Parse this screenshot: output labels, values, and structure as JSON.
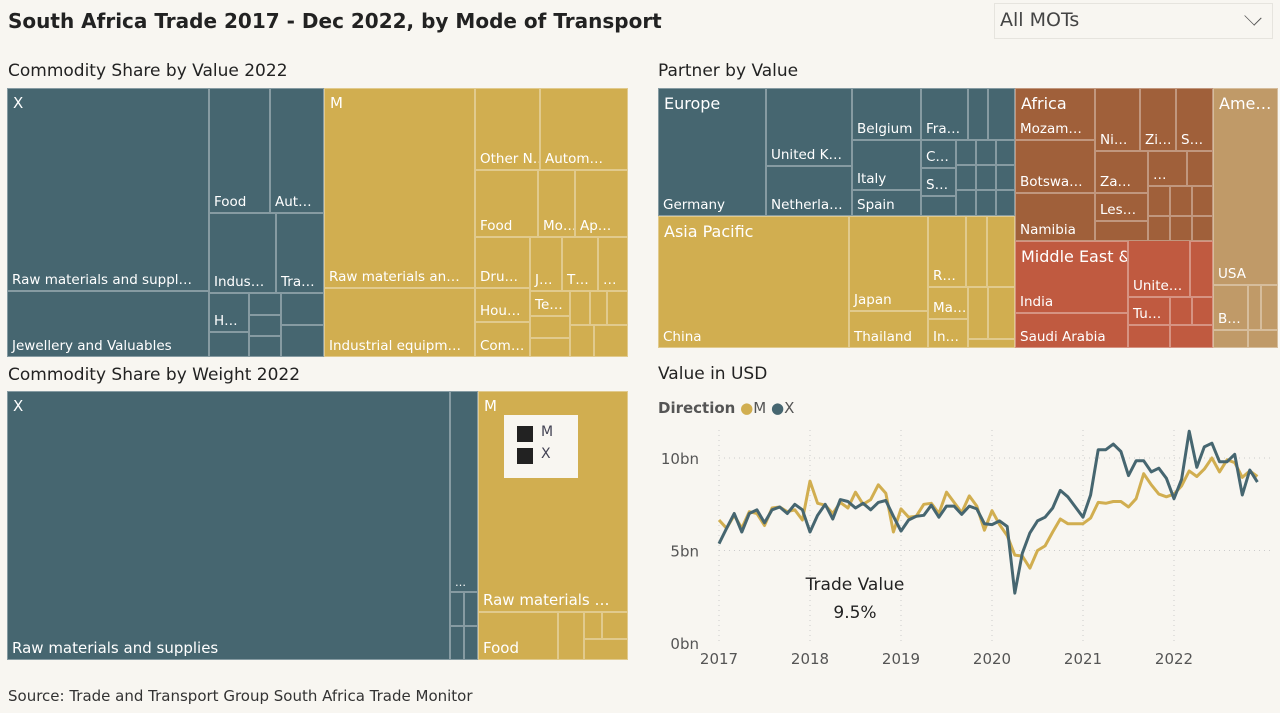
{
  "header": {
    "title": "South Africa Trade 2017 - Dec 2022, by Mode of Transport",
    "mot_select": "All MOTs"
  },
  "commodity_value": {
    "title": "Commodity Share by Value 2022",
    "groups": {
      "x": "X",
      "m": "M"
    },
    "x_cells": [
      "Raw materials and suppl…",
      "Jewellery and Valuables",
      "Food",
      "Aut…",
      "Indus…",
      "Tra…",
      "H…"
    ],
    "m_cells": [
      "Raw materials an…",
      "Industrial equipm…",
      "Other N…",
      "Autom…",
      "Food",
      "Mo…",
      "Ap…",
      "Dru…",
      "Hou…",
      "Com…",
      "J…",
      "T…",
      "…",
      "Te…"
    ]
  },
  "commodity_weight": {
    "title": "Commodity Share by Weight 2022",
    "groups": {
      "x": "X",
      "m": "M"
    },
    "x_cells": [
      "Raw materials and supplies",
      "…"
    ],
    "m_cells": [
      "Raw materials …",
      "Food"
    ],
    "legend": [
      "M",
      "X"
    ]
  },
  "partner": {
    "title": "Partner by Value",
    "europe": {
      "name": "Europe",
      "cells": [
        "Germany",
        "United K…",
        "Netherla…",
        "Belgium",
        "Italy",
        "Spain",
        "Fra…",
        "C…",
        "S…"
      ]
    },
    "asia": {
      "name": "Asia Pacific",
      "cells": [
        "China",
        "Japan",
        "Thailand",
        "R…",
        "Ma…",
        "In…"
      ]
    },
    "africa": {
      "name": "Africa",
      "cells": [
        "Mozam…",
        "Botswa…",
        "Namibia",
        "Ni…",
        "Zi…",
        "S…",
        "Za…",
        "…",
        "Les…"
      ]
    },
    "mideast": {
      "name": "Middle East & South …",
      "cells": [
        "India",
        "Saudi Arabia",
        "Unite…",
        "Tu…"
      ]
    },
    "americas": {
      "name": "Ame…",
      "cells": [
        "USA",
        "B…"
      ]
    },
    "colors": {
      "Europe": "#466670",
      "Asia Pacific": "#D1AE50",
      "Africa": "#A0603A",
      "Middle East & South …": "#C05A40",
      "Americas": "#C09A68"
    }
  },
  "value_chart": {
    "title": "Value in USD",
    "legend_title": "Direction",
    "annotation_label": "Trade Value",
    "annotation_value": "9.5%"
  },
  "chart_data": {
    "type": "line",
    "title": "Value in USD",
    "legend_title": "Direction",
    "legend_position": "top-left",
    "grid": true,
    "x_ticks": [
      "2017",
      "2018",
      "2019",
      "2020",
      "2021",
      "2022"
    ],
    "y_ticks": [
      "0bn",
      "5bn",
      "10bn"
    ],
    "ylim": [
      0,
      12
    ],
    "x_start": "2017-01",
    "x_frequency": "monthly",
    "series": [
      {
        "name": "M",
        "color": "#D1AE50",
        "values": [
          6.65,
          6.2,
          6.9,
          6.2,
          7.1,
          7.0,
          6.35,
          7.3,
          7.35,
          7.1,
          7.2,
          6.65,
          8.75,
          7.55,
          7.45,
          7.0,
          7.6,
          7.3,
          8.15,
          7.5,
          7.75,
          8.55,
          8.1,
          6.0,
          7.25,
          6.8,
          6.85,
          7.5,
          7.55,
          7.0,
          8.15,
          7.6,
          7.05,
          7.95,
          7.4,
          6.1,
          7.15,
          6.4,
          5.8,
          4.75,
          4.7,
          4.05,
          5.0,
          5.25,
          6.0,
          6.7,
          6.45,
          6.45,
          6.45,
          6.75,
          7.6,
          7.55,
          7.65,
          7.65,
          7.35,
          7.8,
          9.15,
          8.55,
          8.05,
          7.9,
          8.05,
          8.5,
          9.3,
          9.0,
          9.4,
          10.0,
          9.25,
          9.9,
          9.75,
          8.95,
          9.3,
          9.0
        ]
      },
      {
        "name": "X",
        "color": "#466670",
        "values": [
          5.37,
          6.2,
          7.0,
          6.0,
          7.0,
          7.2,
          6.5,
          7.2,
          7.35,
          7.0,
          7.5,
          7.2,
          6.0,
          6.9,
          7.5,
          6.7,
          7.75,
          7.65,
          7.3,
          7.55,
          7.2,
          7.6,
          7.7,
          6.85,
          6.05,
          6.65,
          6.85,
          6.9,
          7.45,
          6.8,
          7.4,
          7.4,
          6.95,
          7.4,
          7.25,
          6.45,
          6.4,
          6.6,
          6.3,
          2.7,
          4.85,
          5.95,
          6.6,
          6.8,
          7.3,
          8.25,
          7.9,
          7.35,
          6.8,
          8.0,
          10.45,
          10.45,
          10.75,
          10.35,
          9.05,
          9.85,
          9.85,
          9.25,
          9.45,
          8.9,
          7.8,
          8.85,
          11.45,
          9.5,
          10.6,
          10.8,
          9.8,
          9.8,
          10.2,
          8.0,
          9.35,
          8.7
        ]
      }
    ]
  },
  "footer": {
    "source": "Source: Trade and Transport Group South Africa Trade Monitor"
  }
}
